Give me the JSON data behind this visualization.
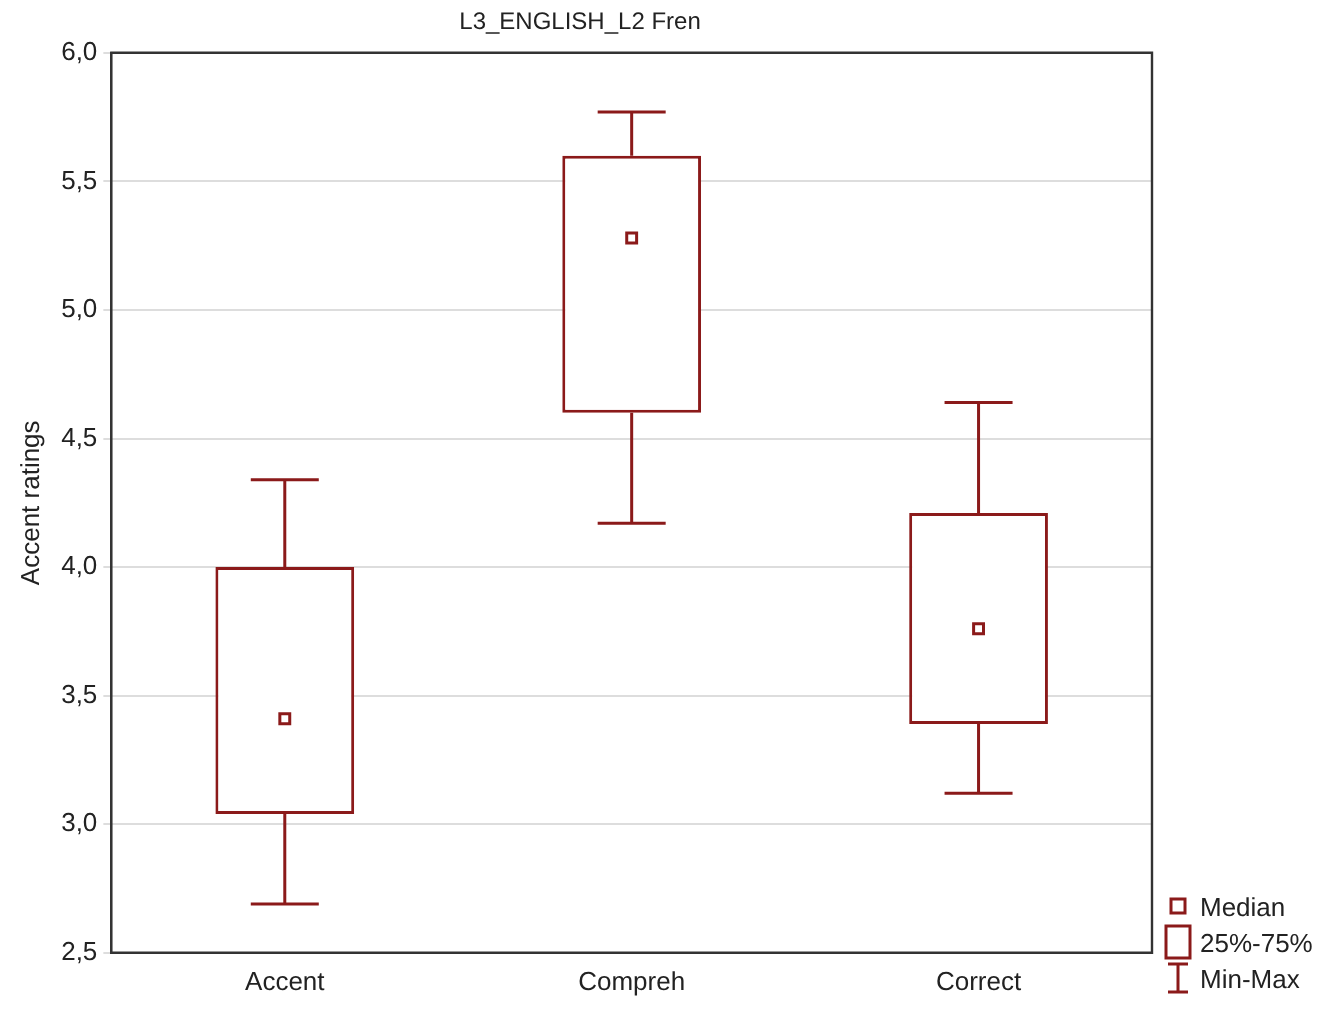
{
  "chart_data": {
    "type": "box",
    "title": "L3_ENGLISH_L2 Fren",
    "ylabel": "Accent ratings",
    "categories": [
      "Accent",
      "Compreh",
      "Correct"
    ],
    "series": [
      {
        "color": "#8b1a1a",
        "boxes": [
          {
            "low": 2.69,
            "q1": 3.04,
            "median": 3.41,
            "q3": 4.0,
            "high": 4.34
          },
          {
            "low": 4.17,
            "q1": 4.6,
            "median": 5.28,
            "q3": 5.6,
            "high": 5.77
          },
          {
            "low": 3.12,
            "q1": 3.39,
            "median": 3.76,
            "q3": 4.21,
            "high": 4.64
          }
        ]
      }
    ],
    "ylim": [
      2.5,
      6.0
    ],
    "yticks": [
      {
        "value": 2.5,
        "label": "2,5"
      },
      {
        "value": 3.0,
        "label": "3,0"
      },
      {
        "value": 3.5,
        "label": "3,5"
      },
      {
        "value": 4.0,
        "label": "4,0"
      },
      {
        "value": 4.5,
        "label": "4,5"
      },
      {
        "value": 5.0,
        "label": "5,0"
      },
      {
        "value": 5.5,
        "label": "5,5"
      },
      {
        "value": 6.0,
        "label": "6,0"
      }
    ],
    "grid": "y",
    "marker": "square",
    "annotations": [
      "Median",
      "25%-75%",
      "Min-Max"
    ]
  }
}
